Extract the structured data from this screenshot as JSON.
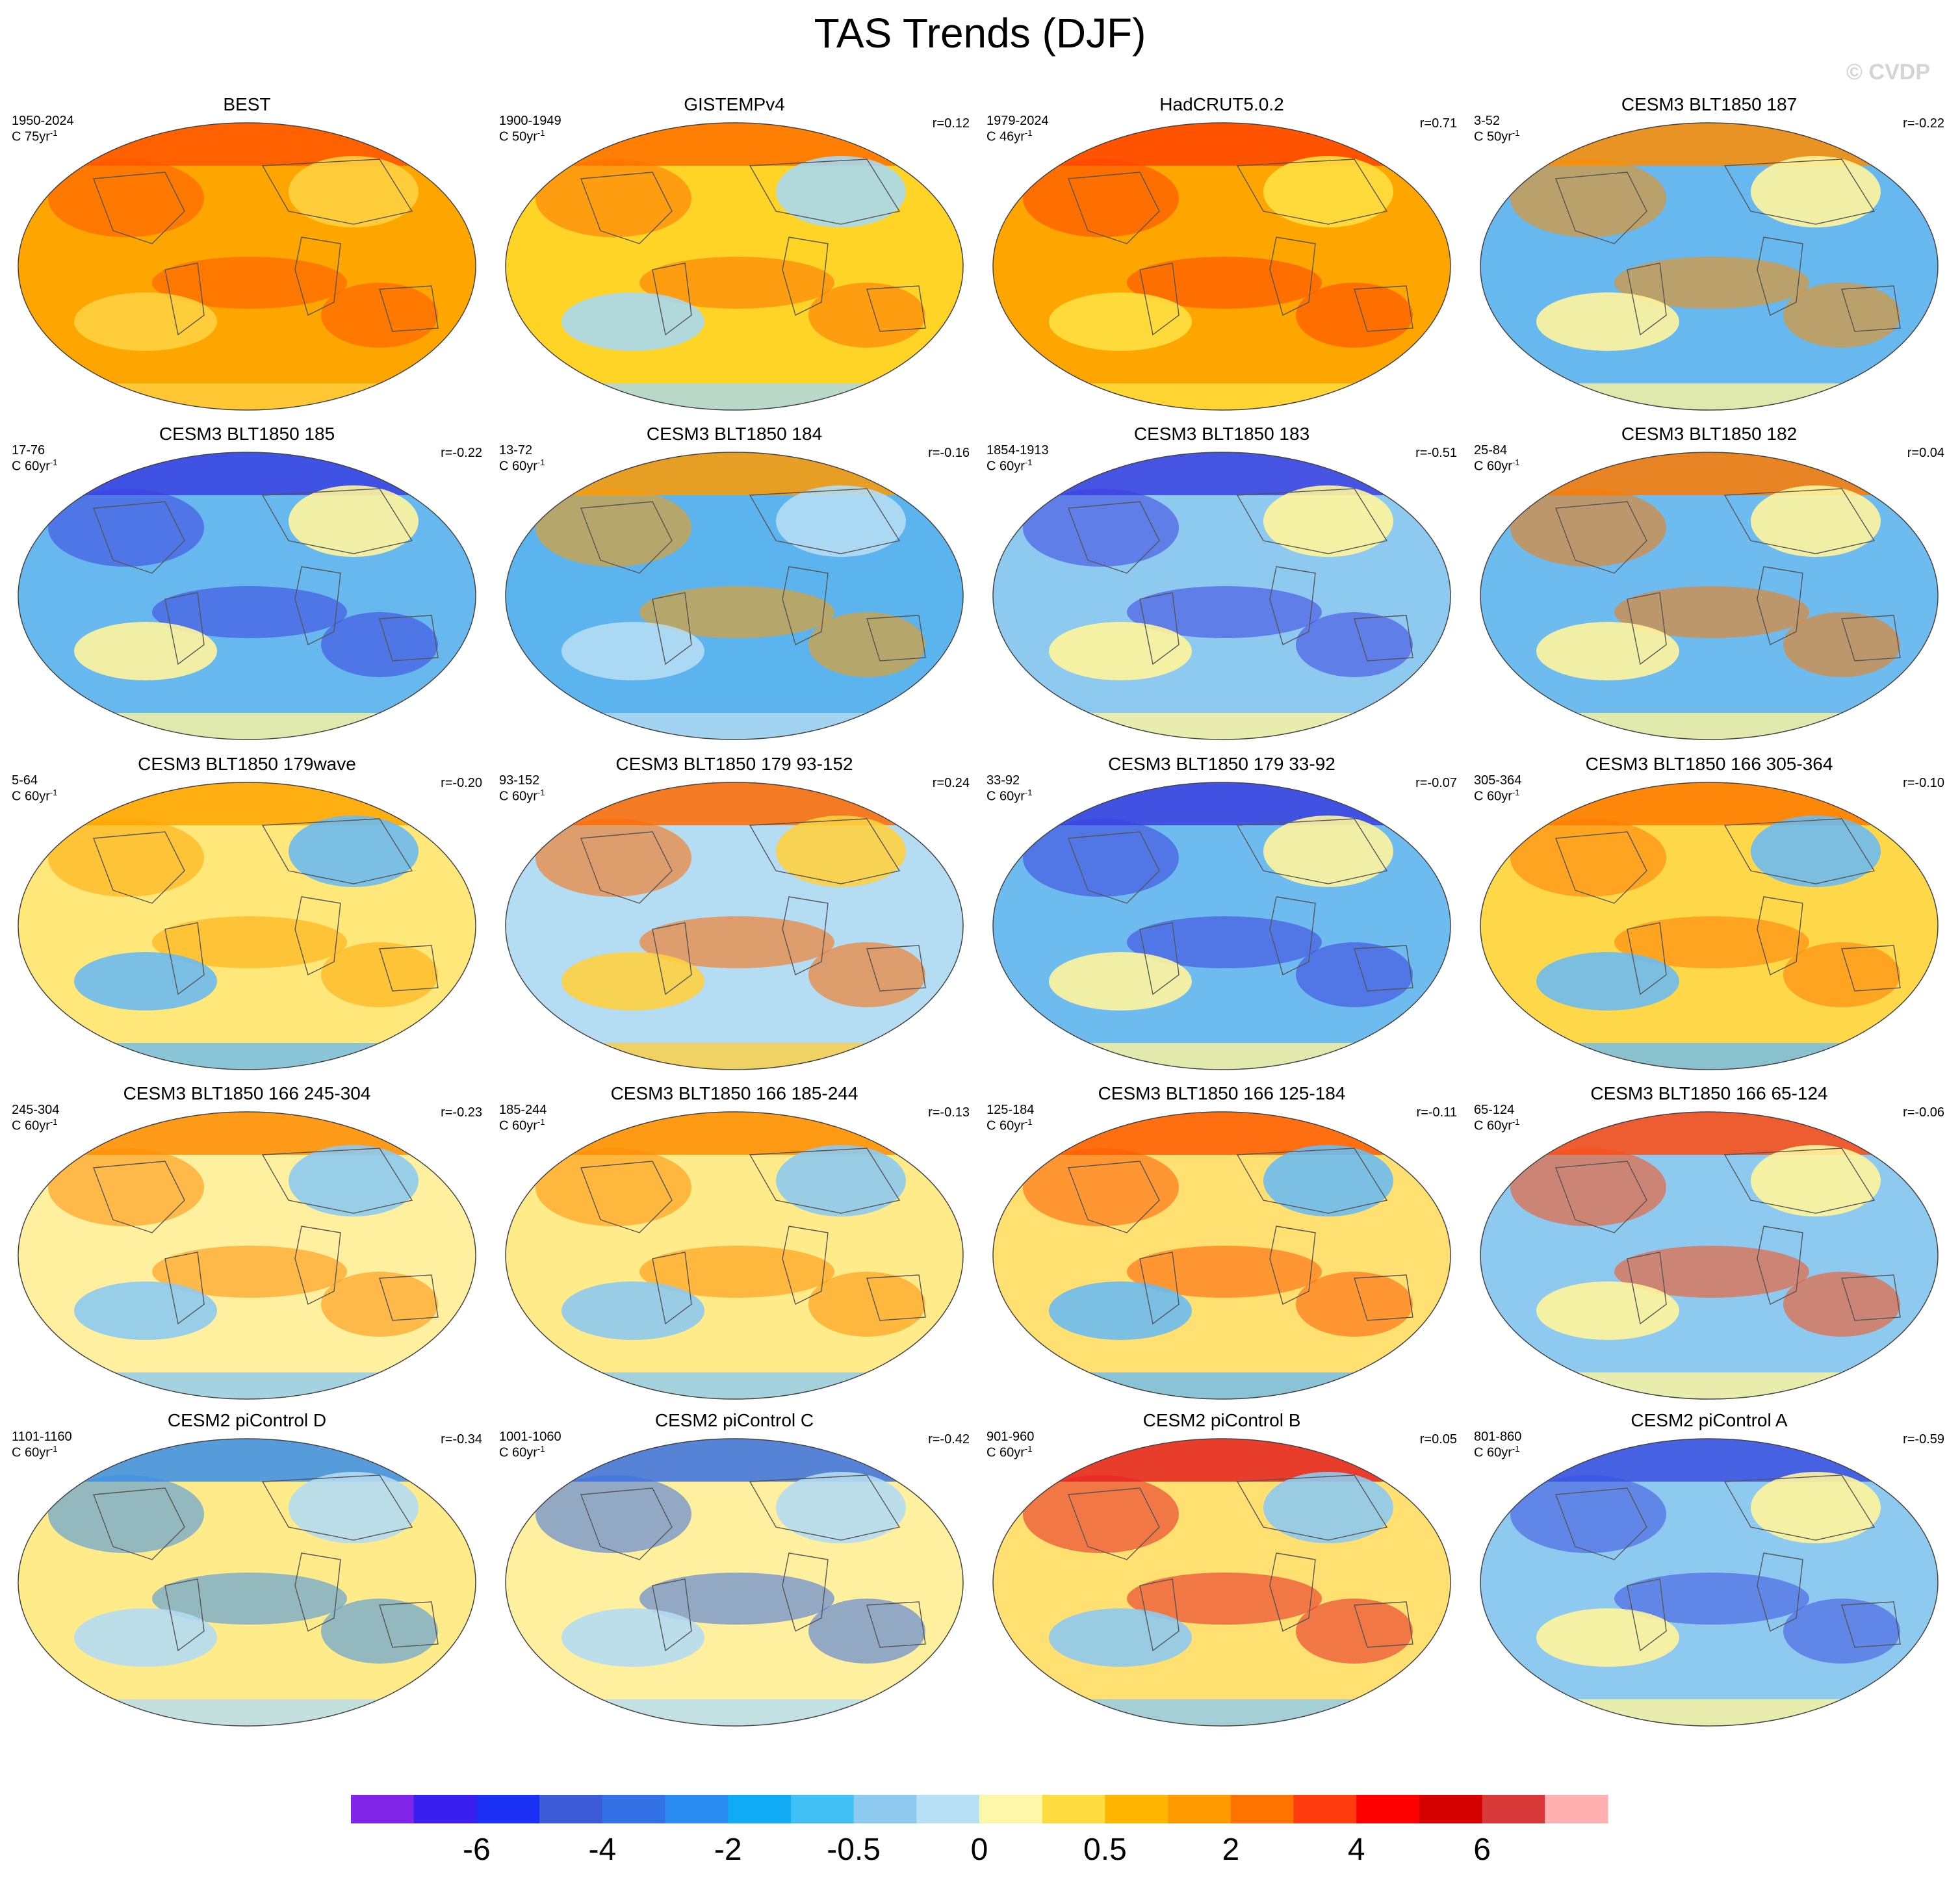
{
  "title": "TAS Trends (DJF)",
  "watermark": "© CVDP",
  "panels": [
    {
      "name": "BEST",
      "period": "1950-2024",
      "units": "C 75yr",
      "units_exp": "-1",
      "r": "",
      "fill": "#ffa500",
      "blob": "#ff5500",
      "patch": "#ffd040"
    },
    {
      "name": "GISTEMPv4",
      "period": "1900-1949",
      "units": "C 50yr",
      "units_exp": "-1",
      "r": "r=0.12",
      "fill": "#ffd426",
      "blob": "#ff7000",
      "patch": "#a8d8f0"
    },
    {
      "name": "HadCRUT5.0.2",
      "period": "1979-2024",
      "units": "C 46yr",
      "units_exp": "-1",
      "r": "r=0.71",
      "fill": "#ffa500",
      "blob": "#ff4400",
      "patch": "#ffe040"
    },
    {
      "name": "CESM3 BLT1850 187",
      "period": "3-52",
      "units": "C 50yr",
      "units_exp": "-1",
      "r": "r=-0.22",
      "fill": "#66b8ee",
      "blob": "#ff8c00",
      "patch": "#fff59c"
    },
    {
      "name": "CESM3 BLT1850 185",
      "period": "17-76",
      "units": "C 60yr",
      "units_exp": "-1",
      "r": "r=-0.22",
      "fill": "#66b8ee",
      "blob": "#3a40e0",
      "patch": "#fff59c"
    },
    {
      "name": "CESM3 BLT1850 184",
      "period": "13-72",
      "units": "C 60yr",
      "units_exp": "-1",
      "r": "r=-0.16",
      "fill": "#5cb4ee",
      "blob": "#ff9a00",
      "patch": "#b4dcf2"
    },
    {
      "name": "CESM3 BLT1850 183",
      "period": "1854-1913",
      "units": "C 60yr",
      "units_exp": "-1",
      "r": "r=-0.51",
      "fill": "#8ecaf0",
      "blob": "#3a40e0",
      "patch": "#fff59c"
    },
    {
      "name": "CESM3 BLT1850 182",
      "period": "25-84",
      "units": "C 60yr",
      "units_exp": "-1",
      "r": "r=0.04",
      "fill": "#6dbbef",
      "blob": "#ff7a00",
      "patch": "#fff59c"
    },
    {
      "name": "CESM3 BLT1850 179wave",
      "period": "5-64",
      "units": "C 60yr",
      "units_exp": "-1",
      "r": "r=-0.20",
      "fill": "#ffe77a",
      "blob": "#ffa500",
      "patch": "#6dbbef"
    },
    {
      "name": "CESM3 BLT1850 179 93-152",
      "period": "93-152",
      "units": "C 60yr",
      "units_exp": "-1",
      "r": "r=0.24",
      "fill": "#b4dcf2",
      "blob": "#ff6a00",
      "patch": "#ffd040"
    },
    {
      "name": "CESM3 BLT1850 179 33-92",
      "period": "33-92",
      "units": "C 60yr",
      "units_exp": "-1",
      "r": "r=-0.07",
      "fill": "#6dbbef",
      "blob": "#3a40e0",
      "patch": "#fff59c"
    },
    {
      "name": "CESM3 BLT1850 166 305-364",
      "period": "305-364",
      "units": "C 60yr",
      "units_exp": "-1",
      "r": "r=-0.10",
      "fill": "#ffd84a",
      "blob": "#ff7a00",
      "patch": "#6dbbef"
    },
    {
      "name": "CESM3 BLT1850 166 245-304",
      "period": "245-304",
      "units": "C 60yr",
      "units_exp": "-1",
      "r": "r=-0.23",
      "fill": "#fff0a0",
      "blob": "#ff8c00",
      "patch": "#8ecaf0"
    },
    {
      "name": "CESM3 BLT1850 166 185-244",
      "period": "185-244",
      "units": "C 60yr",
      "units_exp": "-1",
      "r": "r=-0.13",
      "fill": "#ffeb8a",
      "blob": "#ff8c00",
      "patch": "#8ecaf0"
    },
    {
      "name": "CESM3 BLT1850 166 125-184",
      "period": "125-184",
      "units": "C 60yr",
      "units_exp": "-1",
      "r": "r=-0.11",
      "fill": "#ffe070",
      "blob": "#ff5a00",
      "patch": "#6dbbef"
    },
    {
      "name": "CESM3 BLT1850 166 65-124",
      "period": "65-124",
      "units": "C 60yr",
      "units_exp": "-1",
      "r": "r=-0.06",
      "fill": "#8ecaf0",
      "blob": "#ff4a10",
      "patch": "#fff59c"
    },
    {
      "name": "CESM2 piControl D",
      "period": "1101-1160",
      "units": "C 60yr",
      "units_exp": "-1",
      "r": "r=-0.34",
      "fill": "#ffeb8a",
      "blob": "#3a8ee8",
      "patch": "#b4dcf2"
    },
    {
      "name": "CESM2 piControl C",
      "period": "1001-1060",
      "units": "C 60yr",
      "units_exp": "-1",
      "r": "r=-0.42",
      "fill": "#fff0a0",
      "blob": "#3a70e0",
      "patch": "#b4dcf2"
    },
    {
      "name": "CESM2 piControl B",
      "period": "901-960",
      "units": "C 60yr",
      "units_exp": "-1",
      "r": "r=0.05",
      "fill": "#ffe070",
      "blob": "#e52020",
      "patch": "#8ecaf0"
    },
    {
      "name": "CESM2 piControl A",
      "period": "801-860",
      "units": "C 60yr",
      "units_exp": "-1",
      "r": "r=-0.59",
      "fill": "#8ecaf0",
      "blob": "#3a50e0",
      "patch": "#fff59c"
    }
  ],
  "colorbar": {
    "colors": [
      "#8025e8",
      "#3a20f0",
      "#1a30f5",
      "#3d5cd8",
      "#3272e6",
      "#2a8cf2",
      "#10aaf5",
      "#40bff5",
      "#8ecaf0",
      "#b8e0f5",
      "#fff7a8",
      "#ffdd40",
      "#ffb500",
      "#ff9a00",
      "#ff7400",
      "#ff3c10",
      "#ff0000",
      "#d50000",
      "#d83838",
      "#ffb0b0"
    ],
    "labels": [
      "-6",
      "-4",
      "-2",
      "-0.5",
      "0",
      "0.5",
      "2",
      "4",
      "6"
    ]
  }
}
